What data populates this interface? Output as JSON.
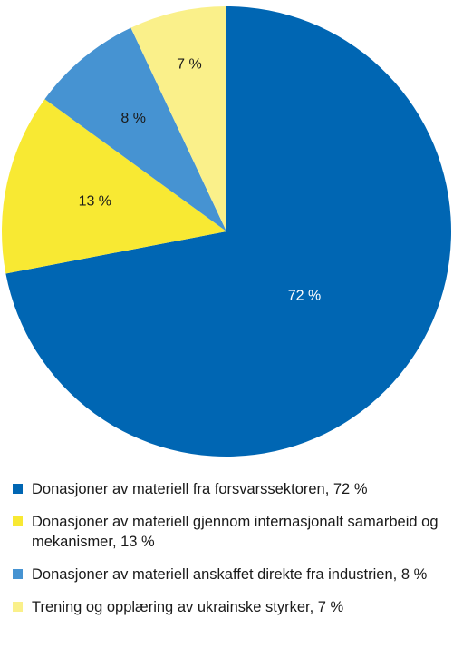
{
  "chart_data": {
    "type": "pie",
    "start_angle_deg": 0,
    "direction": "clockwise",
    "slices": [
      {
        "label": "Donasjoner av materiell fra forsvarssektoren",
        "value": 72,
        "value_label": "72 %",
        "color": "#0066b3",
        "label_color": "#ffffff",
        "legend_text": "Donasjoner av materiell fra forsvarssektoren, 72 %"
      },
      {
        "label": "Donasjoner av materiell gjennom internasjonalt samarbeid og mekanismer",
        "value": 13,
        "value_label": "13 %",
        "color": "#f8e933",
        "label_color": "#1a1a1a",
        "legend_text": "Donasjoner av materiell gjennom internasjonalt samarbeid og mekanismer, 13 %"
      },
      {
        "label": "Donasjoner av materiell anskaffet direkte fra industrien",
        "value": 8,
        "value_label": "8 %",
        "color": "#4693d2",
        "label_color": "#1a1a1a",
        "legend_text": "Donasjoner av materiell anskaffet direkte fra industrien, 8 %"
      },
      {
        "label": "Trening og opplæring av ukrainske styrker",
        "value": 7,
        "value_label": "7 %",
        "color": "#faf08a",
        "label_color": "#1a1a1a",
        "legend_text": "Trening og opplæring av ukrainske styrker, 7 %"
      }
    ],
    "legend_position": "bottom"
  }
}
